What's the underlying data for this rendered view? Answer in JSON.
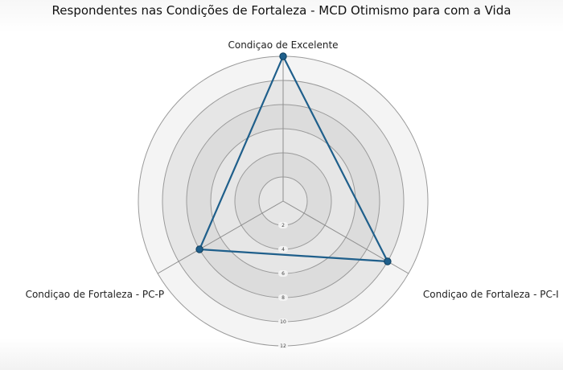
{
  "chart_data": {
    "type": "radar",
    "title": "Respondentes nas Condições de Fortaleza - MCD Otimismo para com a Vida",
    "axes": [
      "Condiçao de Excelente",
      "Condiçao de Fortaleza - PC-I",
      "Condiçao de Fortaleza - PC-P"
    ],
    "series": [
      {
        "values": [
          12,
          10,
          8
        ]
      }
    ],
    "rlim": [
      0,
      12
    ],
    "ticks": [
      2,
      4,
      6,
      8,
      10,
      12
    ],
    "colors": {
      "series": "#1f5f8b",
      "marker": "#1f5f8b",
      "ring_outer": "#f4f4f4",
      "ring_inner": "#d9d9d9",
      "ring_stroke": "#9a9a9a",
      "axis_line": "#8f8f8f"
    },
    "legend": "none",
    "grid": true
  }
}
